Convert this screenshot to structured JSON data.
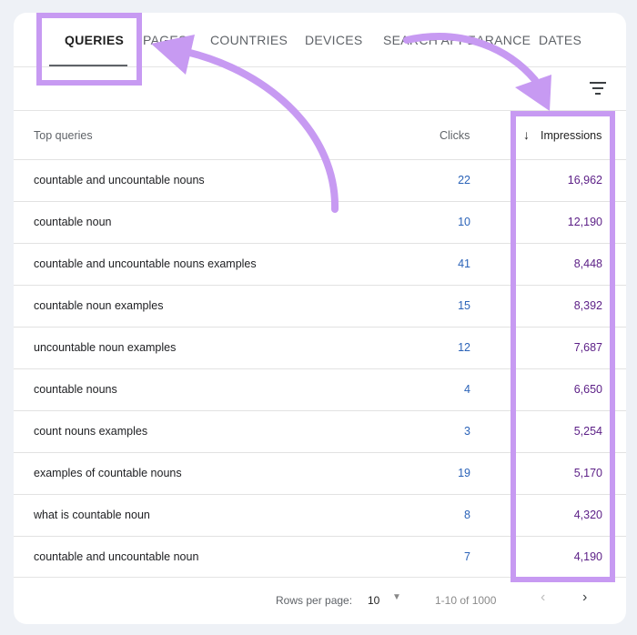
{
  "tabs": [
    {
      "label": "QUERIES",
      "active": true
    },
    {
      "label": "PAGES",
      "active": false
    },
    {
      "label": "COUNTRIES",
      "active": false
    },
    {
      "label": "DEVICES",
      "active": false
    },
    {
      "label": "SEARCH APPEARANCE",
      "active": false
    },
    {
      "label": "DATES",
      "active": false
    }
  ],
  "filter_icon": "filter-list-icon",
  "table": {
    "headers": {
      "query": "Top queries",
      "clicks": "Clicks",
      "impressions": "Impressions"
    },
    "sort_icon": "arrow-down-icon",
    "rows": [
      {
        "query": "countable and uncountable nouns",
        "clicks": "22",
        "impressions": "16,962"
      },
      {
        "query": "countable noun",
        "clicks": "10",
        "impressions": "12,190"
      },
      {
        "query": "countable and uncountable nouns examples",
        "clicks": "41",
        "impressions": "8,448"
      },
      {
        "query": "countable noun examples",
        "clicks": "15",
        "impressions": "8,392"
      },
      {
        "query": "uncountable noun examples",
        "clicks": "12",
        "impressions": "7,687"
      },
      {
        "query": "countable nouns",
        "clicks": "4",
        "impressions": "6,650"
      },
      {
        "query": "count nouns examples",
        "clicks": "3",
        "impressions": "5,254"
      },
      {
        "query": "examples of countable nouns",
        "clicks": "19",
        "impressions": "5,170"
      },
      {
        "query": "what is countable noun",
        "clicks": "8",
        "impressions": "4,320"
      },
      {
        "query": "countable and uncountable noun",
        "clicks": "7",
        "impressions": "4,190"
      }
    ]
  },
  "footer": {
    "rows_per_page_label": "Rows per page:",
    "rows_per_page_value": "10",
    "range": "1-10 of 1000",
    "prev_icon": "chevron-left-icon",
    "next_icon": "chevron-right-icon"
  },
  "colors": {
    "annotation": "#c79af2",
    "clicks": "#2b63b8",
    "impressions": "#5b1e86"
  }
}
